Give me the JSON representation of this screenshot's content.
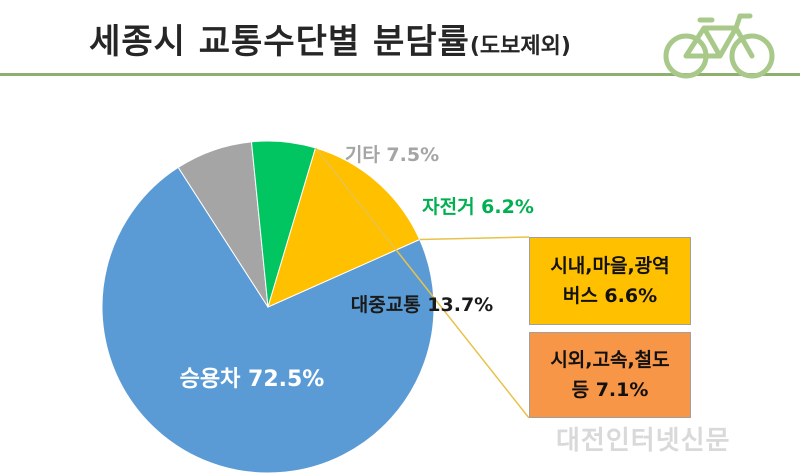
{
  "title": {
    "main": "세종시 교통수단별 분담률",
    "sub": "(도보제외)"
  },
  "chart_data": {
    "type": "pie",
    "title": "세종시 교통수단별 분담률(도보제외)",
    "slices": [
      {
        "label": "승용차",
        "value": 72.5,
        "display": "72.5%",
        "color": "#5b9bd5"
      },
      {
        "label": "기타",
        "value": 7.5,
        "display": "7.5%",
        "color": "#a5a5a5"
      },
      {
        "label": "자전거",
        "value": 6.2,
        "display": "6.2%",
        "color": "#00c560"
      },
      {
        "label": "대중교통",
        "value": 13.7,
        "display": "13.7%",
        "color": "#ffc000"
      }
    ],
    "breakdown": {
      "of": "대중교통",
      "items": [
        {
          "label": "시내,마을,광역 버스",
          "line1": "시내,마을,광역",
          "line2": "버스 6.6%",
          "value": 6.6,
          "color": "#ffc000"
        },
        {
          "label": "시외,고속,철도 등",
          "line1": "시외,고속,철도",
          "line2": "등 7.1%",
          "value": 7.1,
          "color": "#f79646"
        }
      ]
    }
  },
  "labels": {
    "car": "승용차 72.5%",
    "etc": "기타 7.5%",
    "bike": "자전거 6.2%",
    "transit": "대중교통 13.7%"
  },
  "watermark": "대전인터넷신문"
}
